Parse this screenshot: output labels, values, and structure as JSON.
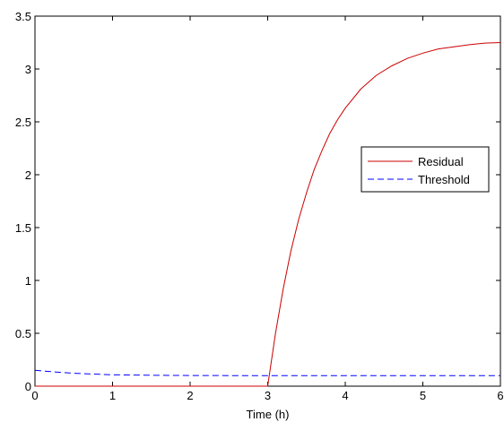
{
  "chart_data": {
    "type": "line",
    "title": "",
    "xlabel": "Time (h)",
    "ylabel": "",
    "xlim": [
      0,
      6
    ],
    "ylim": [
      0,
      3.5
    ],
    "grid": false,
    "legend_position": "right",
    "x_ticks": [
      0,
      1,
      2,
      3,
      4,
      5,
      6
    ],
    "y_ticks": [
      0,
      0.5,
      1,
      1.5,
      2,
      2.5,
      3,
      3.5
    ],
    "x_tick_labels": [
      "0",
      "1",
      "2",
      "3",
      "4",
      "5",
      "6"
    ],
    "y_tick_labels": [
      "0",
      "0.5",
      "1",
      "1.5",
      "2",
      "2.5",
      "3",
      "3.5"
    ],
    "series": [
      {
        "name": "Residual",
        "color": "#cc0000",
        "style": "solid",
        "x": [
          0,
          1,
          2,
          3,
          3.1,
          3.2,
          3.3,
          3.4,
          3.5,
          3.6,
          3.7,
          3.8,
          3.9,
          4.0,
          4.2,
          4.4,
          4.6,
          4.8,
          5.0,
          5.2,
          5.4,
          5.6,
          5.8,
          6.0
        ],
        "y": [
          0,
          0,
          0,
          0,
          0.5,
          0.92,
          1.28,
          1.58,
          1.83,
          2.05,
          2.23,
          2.39,
          2.52,
          2.63,
          2.81,
          2.94,
          3.03,
          3.1,
          3.15,
          3.19,
          3.21,
          3.23,
          3.245,
          3.25
        ]
      },
      {
        "name": "Threshold",
        "color": "#0000ff",
        "style": "dashed",
        "x": [
          0,
          0.25,
          0.5,
          0.75,
          1.0,
          1.5,
          2.0,
          2.5,
          3.0,
          3.5,
          4.0,
          4.5,
          5.0,
          5.5,
          6.0
        ],
        "y": [
          0.15,
          0.135,
          0.122,
          0.114,
          0.108,
          0.103,
          0.101,
          0.1,
          0.1,
          0.1,
          0.1,
          0.1,
          0.1,
          0.1,
          0.1
        ]
      }
    ]
  }
}
